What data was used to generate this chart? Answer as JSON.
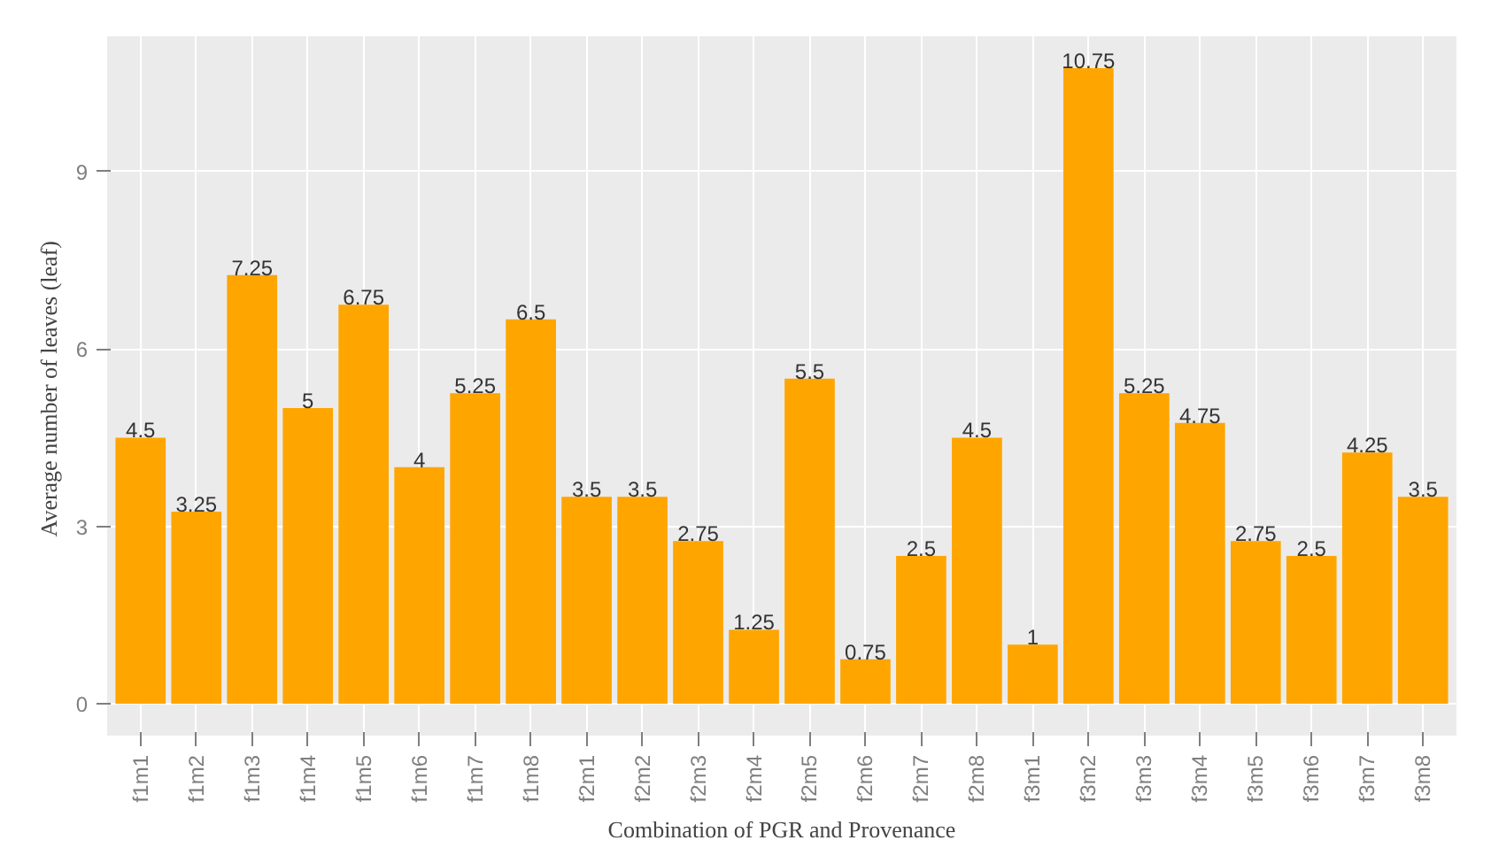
{
  "chart_data": {
    "type": "bar",
    "xlabel": "Combination of PGR and Provenance",
    "ylabel": "Average number of leaves  (leaf)",
    "categories": [
      "f1m1",
      "f1m2",
      "f1m3",
      "f1m4",
      "f1m5",
      "f1m6",
      "f1m7",
      "f1m8",
      "f2m1",
      "f2m2",
      "f2m3",
      "f2m4",
      "f2m5",
      "f2m6",
      "f2m7",
      "f2m8",
      "f3m1",
      "f3m2",
      "f3m3",
      "f3m4",
      "f3m5",
      "f3m6",
      "f3m7",
      "f3m8"
    ],
    "values": [
      4.5,
      3.25,
      7.25,
      5,
      6.75,
      4,
      5.25,
      6.5,
      3.5,
      3.5,
      2.75,
      1.25,
      5.5,
      0.75,
      2.5,
      4.5,
      1,
      10.75,
      5.25,
      4.75,
      2.75,
      2.5,
      4.25,
      3.5
    ],
    "color": "#ffa500",
    "ylim": [
      -0.54,
      11.29
    ],
    "yticks": [
      0,
      3,
      6,
      9
    ],
    "grid": true,
    "data_labels": true
  }
}
